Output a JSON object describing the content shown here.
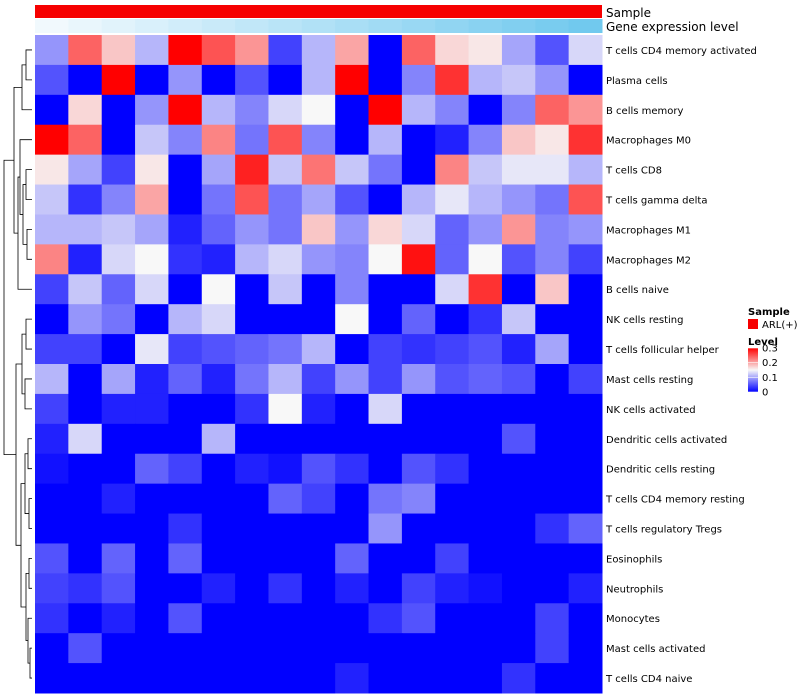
{
  "chart_data": {
    "type": "heatmap",
    "title": "",
    "annotation_tracks": [
      {
        "name": "Sample",
        "colors": [
          "#f60000"
        ]
      },
      {
        "name": "Gene expression level",
        "colors": [
          "#f1f9fd",
          "#e9f6fc",
          "#e1f3fb",
          "#d9f0fb",
          "#d1edfa",
          "#c9eaf9",
          "#c1e7f8",
          "#b9e4f7",
          "#b1e1f6",
          "#a9def5",
          "#a1dbf4",
          "#99d8f3",
          "#91d5f2",
          "#89d2f1",
          "#81cff0",
          "#79ccef",
          "#71c9ee"
        ]
      }
    ],
    "rows": [
      "T cells CD4 memory activated",
      "Plasma cells",
      "B cells memory",
      "Macrophages M0",
      "T cells CD8",
      "T cells gamma delta",
      "Macrophages M1",
      "Macrophages M2",
      "B cells naive",
      "NK cells resting",
      "T cells follicular helper",
      "Mast cells resting",
      "NK cells activated",
      "Dendritic cells activated",
      "Dendritic cells resting",
      "T cells CD4 memory resting",
      "T cells regulatory  Tregs",
      "Eosinophils",
      "Neutrophils",
      "Monocytes",
      "Mast cells activated",
      "T cells CD4 naive"
    ],
    "n_columns": 17,
    "values": [
      [
        0.09,
        0.24,
        0.18,
        0.11,
        0.3,
        0.25,
        0.21,
        0.04,
        0.11,
        0.2,
        0.0,
        0.24,
        0.17,
        0.16,
        0.1,
        0.05,
        0.13
      ],
      [
        0.05,
        0.0,
        0.3,
        0.0,
        0.09,
        0.0,
        0.05,
        0.0,
        0.11,
        0.3,
        0.0,
        0.08,
        0.27,
        0.11,
        0.12,
        0.09,
        0.0
      ],
      [
        0.0,
        0.17,
        0.0,
        0.09,
        0.3,
        0.11,
        0.08,
        0.13,
        0.15,
        0.0,
        0.3,
        0.11,
        0.08,
        0.0,
        0.08,
        0.24,
        0.21
      ],
      [
        0.3,
        0.24,
        0.0,
        0.12,
        0.08,
        0.22,
        0.07,
        0.25,
        0.08,
        0.0,
        0.11,
        0.0,
        0.02,
        0.08,
        0.18,
        0.16,
        0.27
      ],
      [
        0.16,
        0.1,
        0.04,
        0.16,
        0.0,
        0.1,
        0.28,
        0.12,
        0.23,
        0.12,
        0.07,
        0.0,
        0.22,
        0.12,
        0.14,
        0.14,
        0.11
      ],
      [
        0.12,
        0.03,
        0.08,
        0.2,
        0.0,
        0.07,
        0.25,
        0.07,
        0.1,
        0.05,
        0.0,
        0.11,
        0.14,
        0.11,
        0.09,
        0.07,
        0.25
      ],
      [
        0.11,
        0.11,
        0.12,
        0.1,
        0.02,
        0.06,
        0.09,
        0.07,
        0.18,
        0.09,
        0.17,
        0.13,
        0.06,
        0.09,
        0.21,
        0.08,
        0.09
      ],
      [
        0.22,
        0.02,
        0.13,
        0.15,
        0.03,
        0.02,
        0.11,
        0.13,
        0.09,
        0.08,
        0.15,
        0.29,
        0.06,
        0.15,
        0.05,
        0.08,
        0.04
      ],
      [
        0.04,
        0.12,
        0.06,
        0.13,
        0.0,
        0.15,
        0.0,
        0.12,
        0.0,
        0.08,
        0.0,
        0.0,
        0.13,
        0.27,
        0.0,
        0.18,
        0.0
      ],
      [
        0.0,
        0.09,
        0.07,
        0.0,
        0.11,
        0.13,
        0.0,
        0.0,
        0.0,
        0.15,
        0.0,
        0.06,
        0.0,
        0.03,
        0.12,
        0.0,
        0.0
      ],
      [
        0.04,
        0.04,
        0.0,
        0.14,
        0.04,
        0.05,
        0.06,
        0.07,
        0.11,
        0.0,
        0.04,
        0.03,
        0.04,
        0.05,
        0.02,
        0.1,
        0.0
      ],
      [
        0.11,
        0.0,
        0.1,
        0.02,
        0.06,
        0.02,
        0.07,
        0.11,
        0.04,
        0.09,
        0.04,
        0.09,
        0.05,
        0.06,
        0.05,
        0.0,
        0.04
      ],
      [
        0.04,
        0.0,
        0.02,
        0.02,
        0.0,
        0.0,
        0.03,
        0.15,
        0.02,
        0.0,
        0.13,
        0.0,
        0.0,
        0.0,
        0.0,
        0.0,
        0.0
      ],
      [
        0.02,
        0.13,
        0.0,
        0.0,
        0.0,
        0.11,
        0.0,
        0.0,
        0.0,
        0.0,
        0.0,
        0.0,
        0.0,
        0.0,
        0.05,
        0.0,
        0.0
      ],
      [
        0.01,
        0.0,
        0.0,
        0.06,
        0.04,
        0.0,
        0.02,
        0.01,
        0.05,
        0.03,
        0.0,
        0.05,
        0.03,
        0.0,
        0.0,
        0.0,
        0.0
      ],
      [
        0.0,
        0.0,
        0.02,
        0.0,
        0.0,
        0.0,
        0.0,
        0.06,
        0.04,
        0.0,
        0.07,
        0.08,
        0.0,
        0.0,
        0.0,
        0.0,
        0.0
      ],
      [
        0.0,
        0.0,
        0.0,
        0.0,
        0.03,
        0.0,
        0.0,
        0.0,
        0.0,
        0.0,
        0.09,
        0.0,
        0.0,
        0.0,
        0.0,
        0.03,
        0.06
      ],
      [
        0.05,
        0.0,
        0.06,
        0.0,
        0.06,
        0.0,
        0.0,
        0.0,
        0.0,
        0.06,
        0.0,
        0.0,
        0.04,
        0.0,
        0.0,
        0.0,
        0.0
      ],
      [
        0.04,
        0.03,
        0.05,
        0.0,
        0.0,
        0.02,
        0.0,
        0.03,
        0.0,
        0.02,
        0.0,
        0.04,
        0.02,
        0.01,
        0.0,
        0.0,
        0.02
      ],
      [
        0.03,
        0.0,
        0.02,
        0.0,
        0.05,
        0.0,
        0.0,
        0.0,
        0.0,
        0.0,
        0.03,
        0.05,
        0.0,
        0.0,
        0.0,
        0.04,
        0.0
      ],
      [
        0.0,
        0.05,
        0.0,
        0.0,
        0.0,
        0.0,
        0.0,
        0.0,
        0.0,
        0.0,
        0.0,
        0.0,
        0.0,
        0.0,
        0.0,
        0.04,
        0.0
      ],
      [
        0.0,
        0.0,
        0.0,
        0.0,
        0.0,
        0.0,
        0.0,
        0.0,
        0.0,
        0.02,
        0.0,
        0.0,
        0.0,
        0.0,
        0.03,
        0.0,
        0.0
      ]
    ],
    "color_scale": {
      "low": "#0000ff",
      "mid": "#f8f8f8",
      "high": "#ff0000",
      "min": 0,
      "mid_value": 0.15,
      "max": 0.3
    },
    "legend": {
      "sample_title": "Sample",
      "sample_entry": "ARL(+)",
      "sample_color": "#f60000",
      "level_title": "Level",
      "level_ticks": [
        "0.3",
        "0.2",
        "0.1",
        "0"
      ],
      "level_tick_values": [
        0.3,
        0.2,
        0.1,
        0
      ],
      "placement": "right"
    },
    "dendrogram": "rows"
  }
}
